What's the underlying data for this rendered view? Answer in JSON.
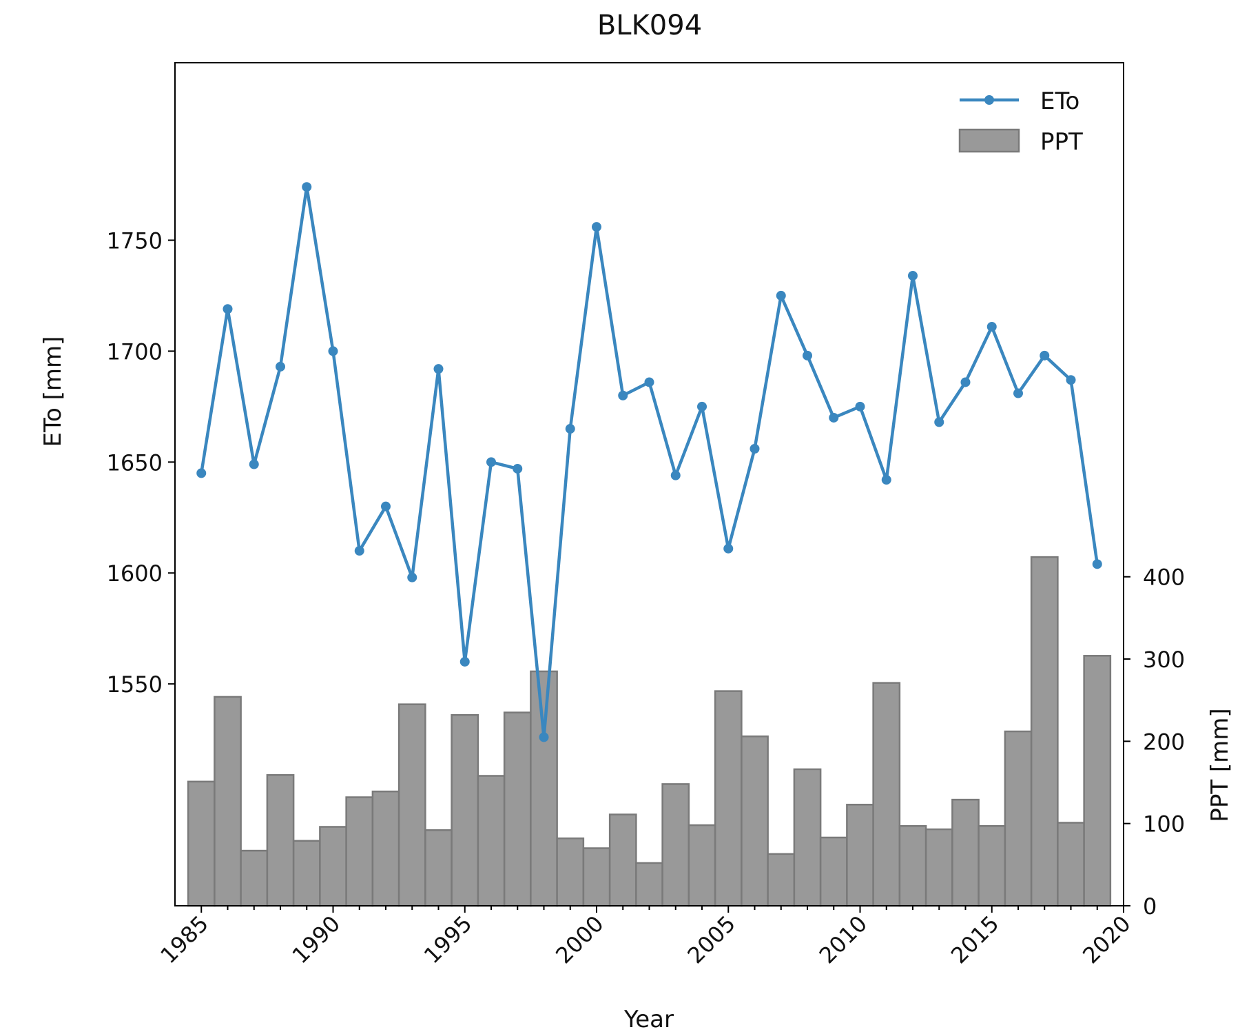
{
  "chart_data": {
    "type": "line+bar",
    "title": "BLK094",
    "xlabel": "Year",
    "ylabel_left": "ETo [mm]",
    "ylabel_right": "PPT [mm]",
    "x_ticks": [
      1985,
      1990,
      1995,
      2000,
      2005,
      2010,
      2015,
      2020
    ],
    "x_tick_labels": [
      "1985",
      "1990",
      "1995",
      "2000",
      "2005",
      "2010",
      "2015",
      "2020"
    ],
    "xlim": [
      1984,
      2020
    ],
    "ylim_left": [
      1450,
      1830
    ],
    "y_ticks_left": [
      1550,
      1600,
      1650,
      1700,
      1750
    ],
    "y_tick_labels_left": [
      "1550",
      "1600",
      "1650",
      "1700",
      "1750"
    ],
    "ylim_right": [
      0,
      1025
    ],
    "y_ticks_right": [
      0,
      100,
      200,
      300,
      400
    ],
    "y_tick_labels_right": [
      "0",
      "100",
      "200",
      "300",
      "400"
    ],
    "legend_position": "upper-right",
    "grid": false,
    "x": [
      1985,
      1986,
      1987,
      1988,
      1989,
      1990,
      1991,
      1992,
      1993,
      1994,
      1995,
      1996,
      1997,
      1998,
      1999,
      2000,
      2001,
      2002,
      2003,
      2004,
      2005,
      2006,
      2007,
      2008,
      2009,
      2010,
      2011,
      2012,
      2013,
      2014,
      2015,
      2016,
      2017,
      2018,
      2019
    ],
    "series": [
      {
        "name": "ETo",
        "kind": "line",
        "axis": "left",
        "color": "#3a87bf",
        "values": [
          1645,
          1719,
          1649,
          1693,
          1774,
          1700,
          1610,
          1630,
          1598,
          1692,
          1560,
          1650,
          1647,
          1526,
          1665,
          1756,
          1680,
          1686,
          1644,
          1675,
          1611,
          1656,
          1725,
          1698,
          1670,
          1675,
          1642,
          1734,
          1668,
          1686,
          1711,
          1681,
          1698,
          1687,
          1604
        ]
      },
      {
        "name": "PPT",
        "kind": "bar",
        "axis": "right",
        "color": "#999999",
        "edge_color": "#7a7a7a",
        "values": [
          151,
          254,
          67,
          159,
          79,
          96,
          132,
          139,
          245,
          92,
          232,
          158,
          235,
          285,
          82,
          70,
          111,
          52,
          148,
          98,
          261,
          206,
          63,
          166,
          83,
          123,
          271,
          97,
          93,
          129,
          97,
          212,
          424,
          101,
          304
        ]
      }
    ]
  }
}
